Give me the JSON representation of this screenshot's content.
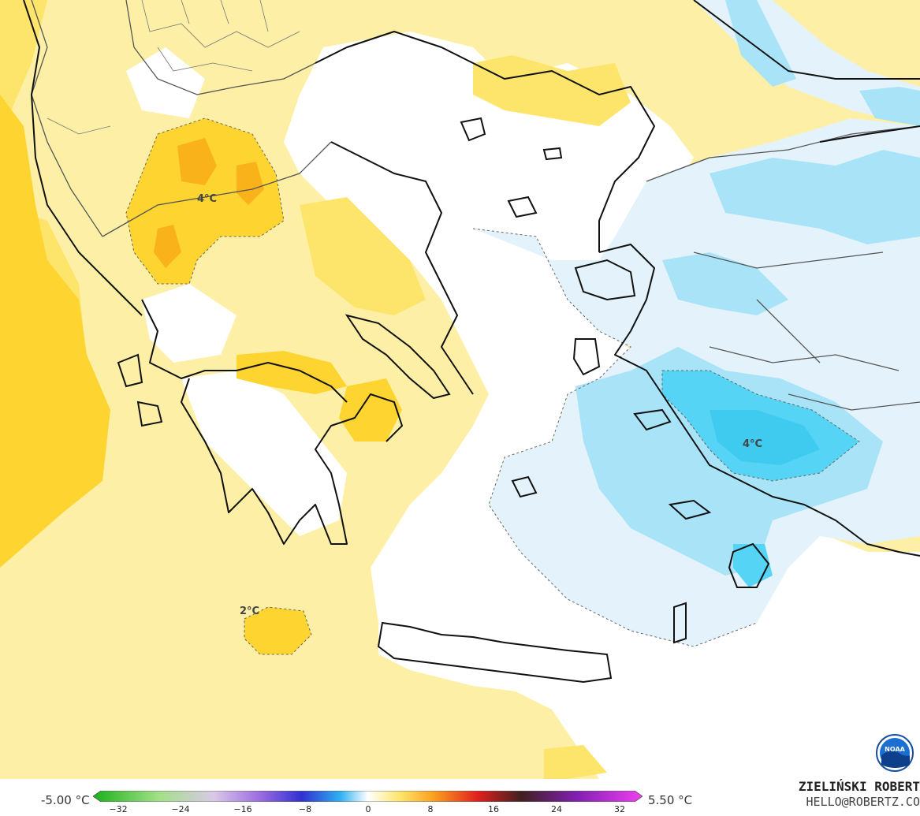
{
  "map": {
    "contour_labels": [
      "4°C",
      "4°C",
      "2°C"
    ],
    "colors": {
      "pale_yellow": "#fdf0a6",
      "yellow": "#fde46a",
      "gold": "#fdd430",
      "orange": "#f9b21a",
      "light_blue": "#e4f3fb",
      "sky_blue": "#a8e3f7",
      "cyan": "#55d4f5",
      "coast": "#111111",
      "border": "#555555"
    }
  },
  "legend": {
    "min_label": "-5.00 °C",
    "max_label": "5.50 °C",
    "ticks": [
      "−32",
      "−24",
      "−16",
      "−8",
      "0",
      "8",
      "16",
      "24",
      "32"
    ]
  },
  "credit": {
    "name": "ZIELIŃSKI ROBERT",
    "email": "HELLO@ROBERTZ.CO"
  },
  "logo": {
    "icon": "noaa-logo-icon",
    "text": "NOAA"
  }
}
